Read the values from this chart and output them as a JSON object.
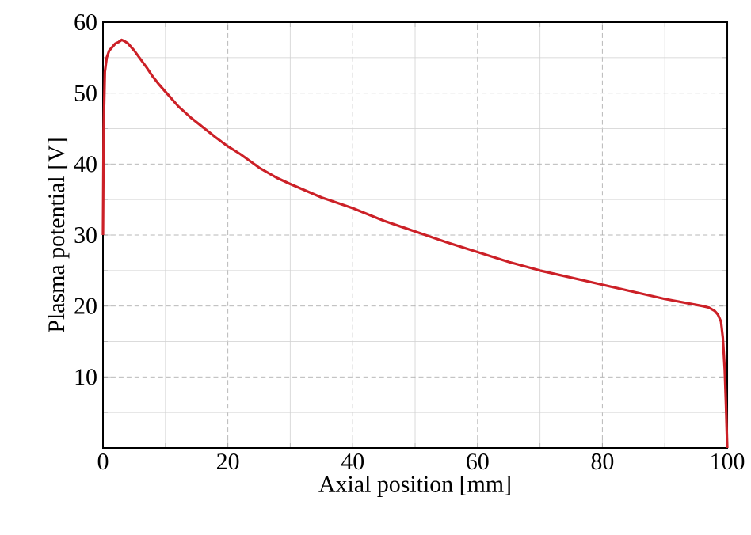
{
  "chart_data": {
    "type": "line",
    "xlabel": "Axial position [mm]",
    "ylabel": "Plasma potential [V]",
    "x": [
      0,
      0.1,
      0.3,
      0.6,
      1,
      1.5,
      2,
      2.5,
      3,
      3.5,
      4,
      5,
      6,
      7,
      8,
      9,
      10,
      12,
      14,
      16,
      18,
      20,
      22,
      25,
      28,
      30,
      35,
      40,
      45,
      50,
      55,
      60,
      65,
      70,
      75,
      80,
      85,
      90,
      93,
      96,
      97,
      98,
      98.5,
      99,
      99.3,
      99.6,
      99.8,
      100
    ],
    "series": [
      {
        "color": "#cc2027",
        "values": [
          30,
          45,
          53,
          55,
          56,
          56.5,
          57,
          57.2,
          57.5,
          57.3,
          57,
          56,
          54.8,
          53.6,
          52.3,
          51.2,
          50.2,
          48.2,
          46.6,
          45.2,
          43.8,
          42.5,
          41.4,
          39.5,
          38,
          37.2,
          35.3,
          33.8,
          32,
          30.5,
          29,
          27.6,
          26.2,
          25,
          24,
          23,
          22,
          21,
          20.5,
          20,
          19.8,
          19.3,
          18.8,
          17.8,
          15.5,
          11,
          6,
          0
        ]
      }
    ],
    "xlim": [
      0,
      100
    ],
    "ylim": [
      0,
      60
    ],
    "xticks": [
      0,
      20,
      40,
      60,
      80,
      100
    ],
    "yticks": [
      {
        "value": 0,
        "label": null
      },
      10,
      20,
      30,
      40,
      50,
      60
    ],
    "grid": true
  }
}
